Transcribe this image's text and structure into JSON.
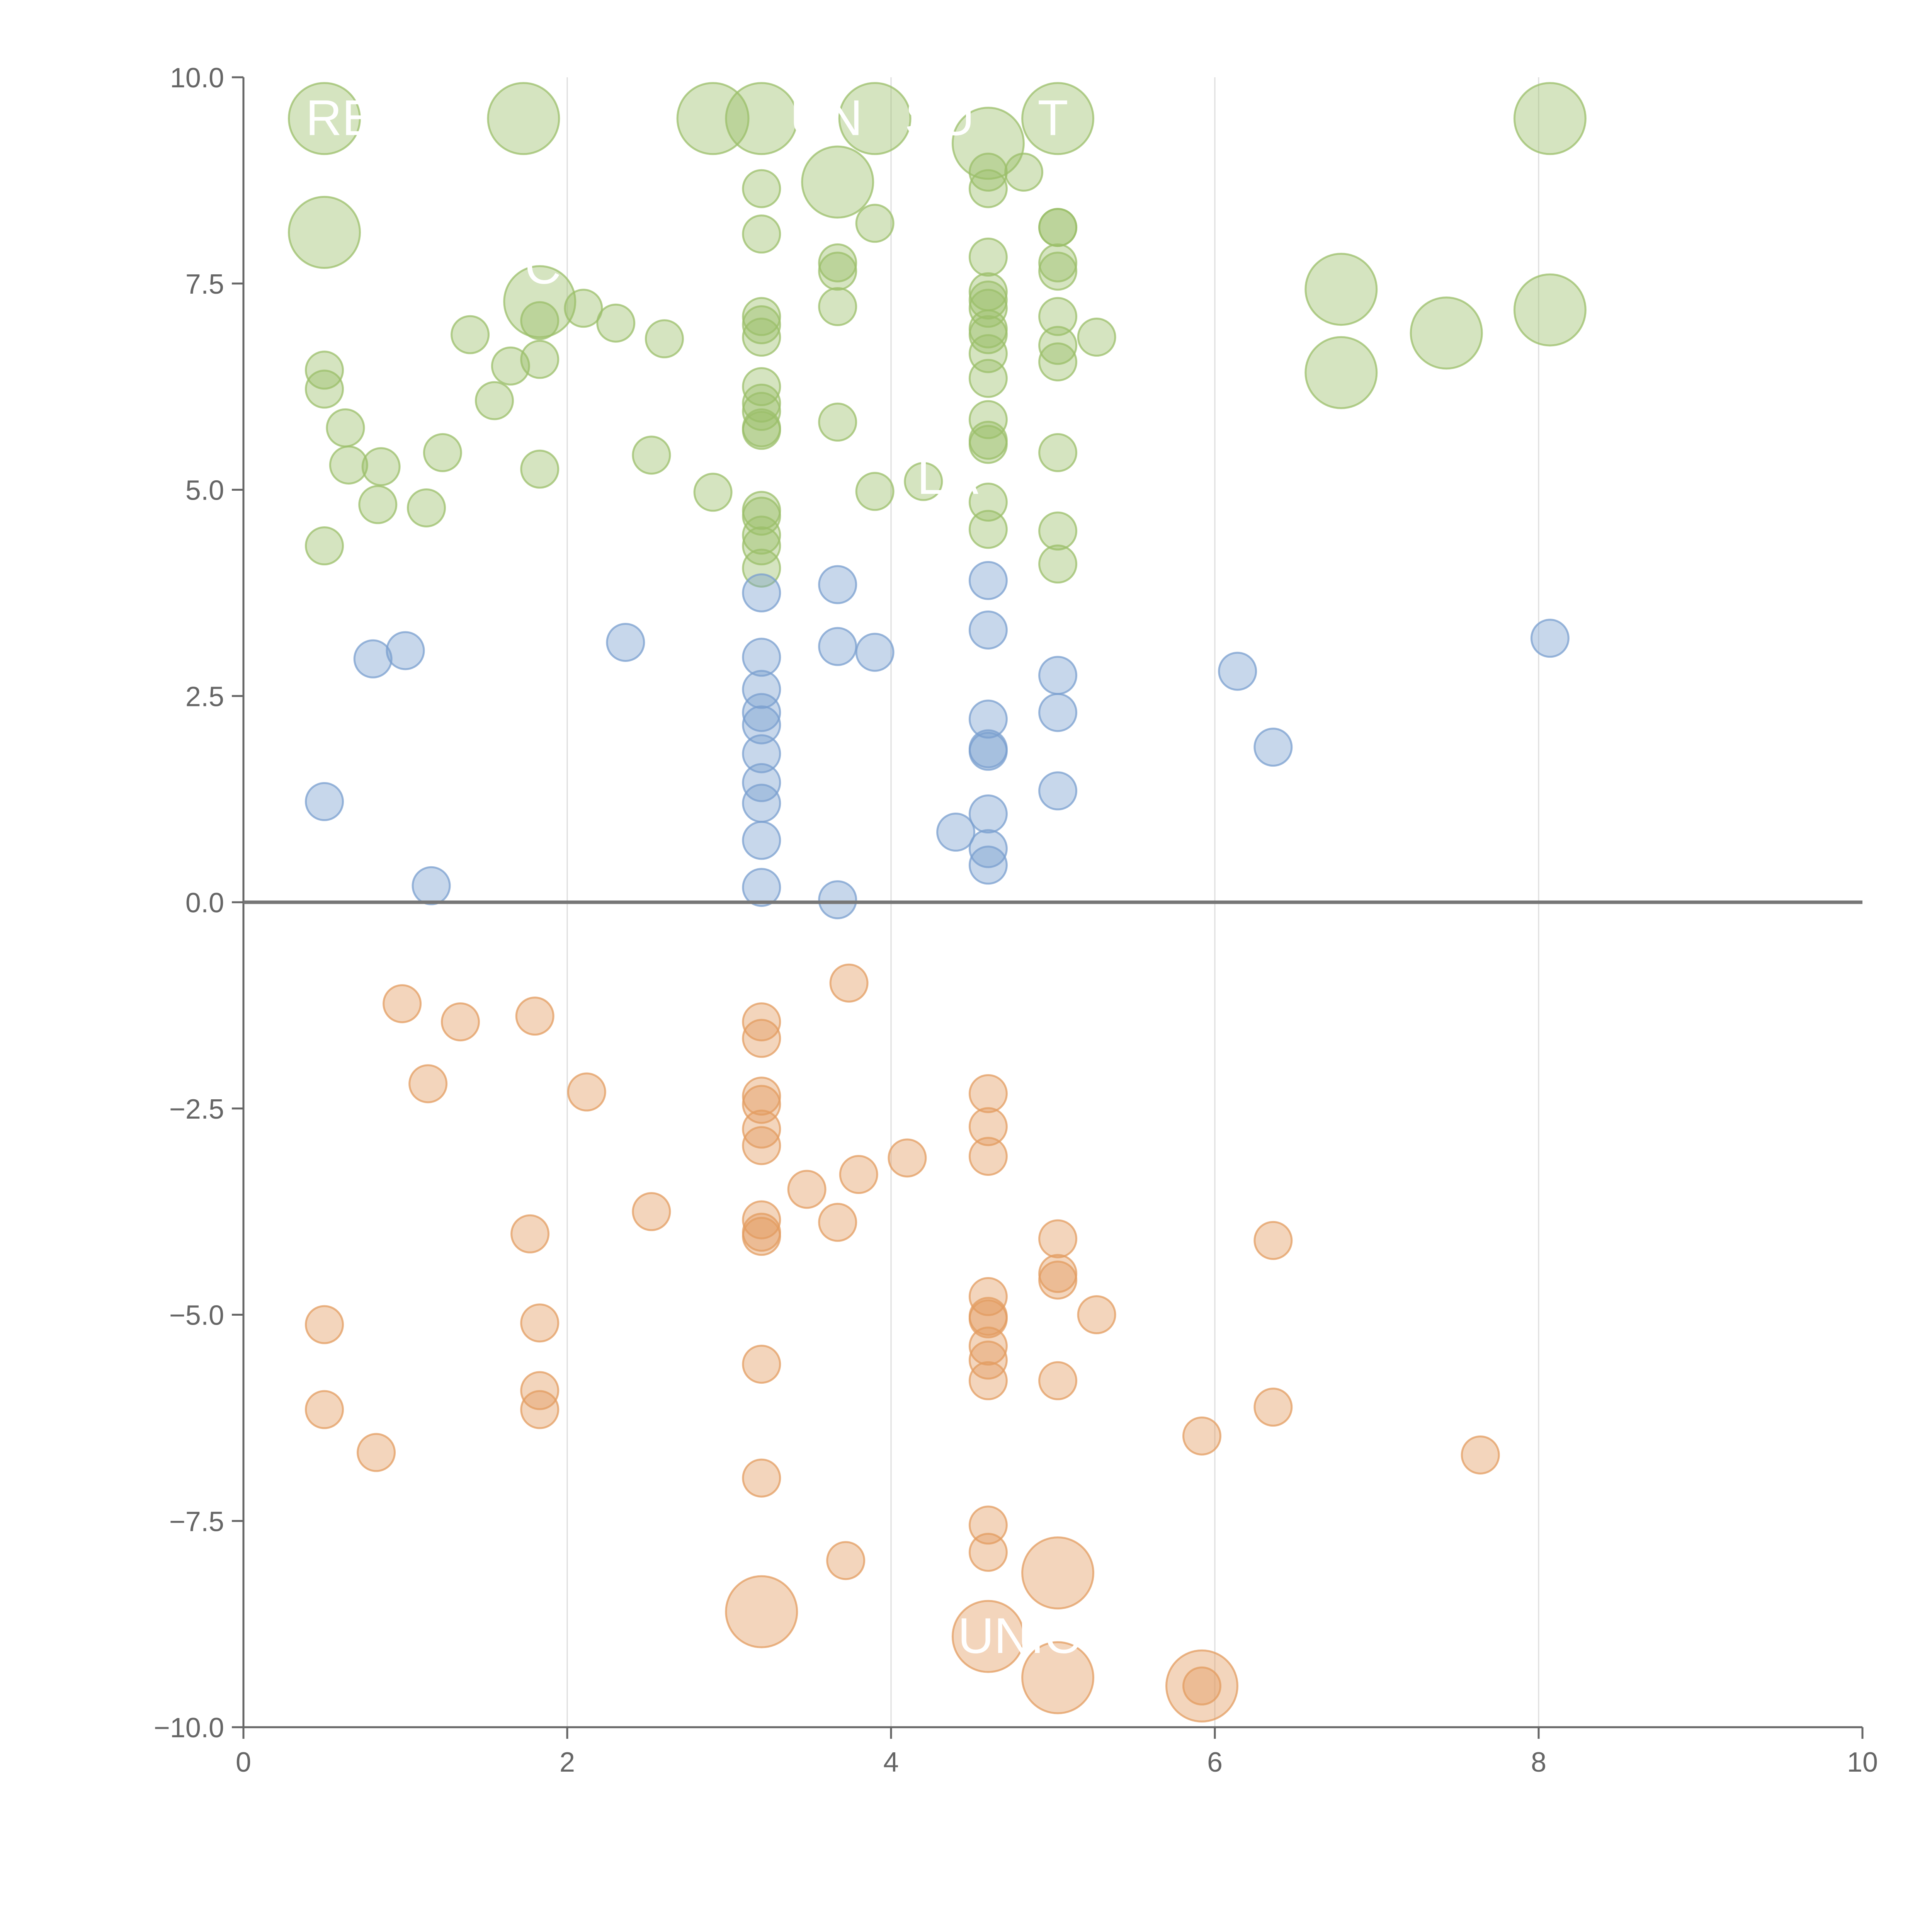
{
  "chart_data": {
    "type": "scatter",
    "title": "",
    "xlabel": "",
    "ylabel": "",
    "xlim": [
      0,
      10
    ],
    "ylim": [
      -10,
      10
    ],
    "x_ticks": [
      "0",
      "2",
      "4",
      "6",
      "8",
      "10"
    ],
    "y_ticks": [
      "10.0",
      "7.5",
      "5.0",
      "2.5",
      "0.0",
      "−2.5",
      "−5.0",
      "−7.5",
      "−10.0"
    ],
    "grid": "vertical",
    "zero_line": true,
    "colors": {
      "green": "#9bbf6a",
      "blue": "#7a9fcf",
      "orange": "#e39c60",
      "axis": "#666666",
      "zero": "#777777",
      "grid": "#dddddd"
    },
    "visible_labels": [
      "RE",
      "UN",
      "SU",
      "T",
      "C",
      "LA",
      "UNIO"
    ],
    "series": [
      {
        "color": "green",
        "points": [
          [
            0.5,
            9.5,
            2
          ],
          [
            1.73,
            9.5,
            2
          ],
          [
            2.9,
            9.5,
            2
          ],
          [
            3.2,
            9.5,
            2
          ],
          [
            3.9,
            9.5,
            2
          ],
          [
            5.03,
            9.5,
            2
          ],
          [
            8.07,
            9.5,
            2
          ],
          [
            0.5,
            8.12,
            2
          ],
          [
            3.67,
            8.73,
            2
          ],
          [
            4.6,
            9.2,
            2
          ],
          [
            1.83,
            7.28,
            2
          ],
          [
            6.78,
            7.43,
            2
          ],
          [
            7.43,
            6.9,
            2
          ],
          [
            8.07,
            7.18,
            2
          ],
          [
            6.78,
            6.42,
            2
          ],
          [
            4.6,
            8.85,
            1
          ],
          [
            4.6,
            8.65,
            1
          ],
          [
            4.82,
            8.85,
            1
          ],
          [
            3.2,
            8.65,
            1
          ],
          [
            3.2,
            8.1,
            1
          ],
          [
            3.9,
            8.23,
            1
          ],
          [
            5.03,
            8.18,
            1
          ],
          [
            5.03,
            8.18,
            1
          ],
          [
            5.03,
            7.75,
            1
          ],
          [
            5.03,
            7.65,
            1
          ],
          [
            5.03,
            7.1,
            1
          ],
          [
            5.03,
            6.75,
            1
          ],
          [
            5.03,
            6.55,
            1
          ],
          [
            5.27,
            6.85,
            1
          ],
          [
            4.6,
            7.82,
            1
          ],
          [
            4.6,
            7.4,
            1
          ],
          [
            4.6,
            7.3,
            1
          ],
          [
            4.6,
            7.2,
            1
          ],
          [
            4.6,
            6.95,
            1
          ],
          [
            4.6,
            6.88,
            1
          ],
          [
            4.6,
            6.65,
            1
          ],
          [
            4.6,
            6.35,
            1
          ],
          [
            4.6,
            5.85,
            1
          ],
          [
            4.6,
            5.6,
            1
          ],
          [
            4.6,
            5.55,
            1
          ],
          [
            4.6,
            4.85,
            1
          ],
          [
            4.6,
            4.52,
            1
          ],
          [
            3.67,
            7.75,
            1
          ],
          [
            3.67,
            7.65,
            1
          ],
          [
            3.67,
            7.22,
            1
          ],
          [
            3.67,
            5.82,
            1
          ],
          [
            3.2,
            7.1,
            1
          ],
          [
            3.2,
            7.0,
            1
          ],
          [
            3.2,
            6.85,
            1
          ],
          [
            3.2,
            6.25,
            1
          ],
          [
            3.2,
            6.05,
            1
          ],
          [
            3.2,
            5.95,
            1
          ],
          [
            3.2,
            5.75,
            1
          ],
          [
            3.2,
            5.72,
            1
          ],
          [
            3.2,
            4.75,
            1
          ],
          [
            3.2,
            4.68,
            1
          ],
          [
            3.2,
            4.45,
            1
          ],
          [
            3.2,
            4.32,
            1
          ],
          [
            3.2,
            4.05,
            1
          ],
          [
            2.1,
            7.2,
            1
          ],
          [
            2.3,
            7.02,
            1
          ],
          [
            2.6,
            6.83,
            1
          ],
          [
            1.4,
            6.88,
            1
          ],
          [
            1.65,
            6.5,
            1
          ],
          [
            1.83,
            7.05,
            1
          ],
          [
            1.83,
            6.58,
            1
          ],
          [
            1.55,
            6.08,
            1
          ],
          [
            0.5,
            6.45,
            1
          ],
          [
            0.5,
            6.22,
            1
          ],
          [
            0.63,
            5.75,
            1
          ],
          [
            0.65,
            5.3,
            1
          ],
          [
            0.85,
            5.28,
            1
          ],
          [
            0.83,
            4.82,
            1
          ],
          [
            1.13,
            4.78,
            1
          ],
          [
            1.23,
            5.45,
            1
          ],
          [
            1.83,
            5.25,
            1
          ],
          [
            0.5,
            4.32,
            1
          ],
          [
            2.52,
            5.42,
            1
          ],
          [
            2.9,
            4.97,
            1
          ],
          [
            3.9,
            4.98,
            1
          ],
          [
            4.2,
            5.1,
            1
          ],
          [
            5.03,
            5.45,
            1
          ],
          [
            5.03,
            4.5,
            1
          ],
          [
            5.03,
            4.1,
            1
          ]
        ]
      },
      {
        "color": "blue",
        "points": [
          [
            0.5,
            1.22,
            1
          ],
          [
            0.8,
            2.95,
            1
          ],
          [
            1.0,
            3.05,
            1
          ],
          [
            1.16,
            0.2,
            1
          ],
          [
            2.36,
            3.15,
            1
          ],
          [
            3.2,
            3.75,
            1
          ],
          [
            3.2,
            2.97,
            1
          ],
          [
            3.2,
            2.58,
            1
          ],
          [
            3.2,
            2.3,
            1
          ],
          [
            3.2,
            2.15,
            1
          ],
          [
            3.2,
            1.8,
            1
          ],
          [
            3.2,
            1.45,
            1
          ],
          [
            3.2,
            1.2,
            1
          ],
          [
            3.2,
            0.75,
            1
          ],
          [
            3.2,
            0.18,
            1
          ],
          [
            3.67,
            3.85,
            1
          ],
          [
            3.67,
            3.1,
            1
          ],
          [
            3.9,
            3.03,
            1
          ],
          [
            3.67,
            0.03,
            1
          ],
          [
            4.6,
            3.9,
            1
          ],
          [
            4.6,
            3.3,
            1
          ],
          [
            4.6,
            2.22,
            1
          ],
          [
            4.6,
            1.86,
            1
          ],
          [
            4.6,
            1.83,
            1
          ],
          [
            4.6,
            1.07,
            1
          ],
          [
            4.4,
            0.85,
            1
          ],
          [
            4.6,
            0.65,
            1
          ],
          [
            4.6,
            0.45,
            1
          ],
          [
            5.03,
            2.75,
            1
          ],
          [
            5.03,
            2.3,
            1
          ],
          [
            5.03,
            1.35,
            1
          ],
          [
            6.14,
            2.8,
            1
          ],
          [
            6.36,
            1.88,
            1
          ],
          [
            8.07,
            3.2,
            1
          ]
        ]
      },
      {
        "color": "orange",
        "points": [
          [
            0.98,
            -1.23,
            1
          ],
          [
            1.34,
            -1.45,
            1
          ],
          [
            1.8,
            -1.38,
            1
          ],
          [
            1.14,
            -2.2,
            1
          ],
          [
            2.12,
            -2.3,
            1
          ],
          [
            3.2,
            -1.45,
            1
          ],
          [
            3.2,
            -1.65,
            1
          ],
          [
            3.2,
            -2.35,
            1
          ],
          [
            3.2,
            -2.45,
            1
          ],
          [
            3.2,
            -2.75,
            1
          ],
          [
            3.2,
            -2.95,
            1
          ],
          [
            3.74,
            -0.98,
            1
          ],
          [
            3.8,
            -3.3,
            1
          ],
          [
            4.1,
            -3.1,
            1
          ],
          [
            3.48,
            -3.48,
            1
          ],
          [
            2.52,
            -3.75,
            1
          ],
          [
            1.77,
            -4.02,
            1
          ],
          [
            3.2,
            -3.85,
            1
          ],
          [
            3.2,
            -4.0,
            1
          ],
          [
            3.2,
            -4.05,
            1
          ],
          [
            3.67,
            -3.88,
            1
          ],
          [
            4.6,
            -2.32,
            1
          ],
          [
            4.6,
            -2.72,
            1
          ],
          [
            4.6,
            -3.08,
            1
          ],
          [
            5.03,
            -4.08,
            1
          ],
          [
            5.03,
            -4.5,
            1
          ],
          [
            5.03,
            -4.58,
            1
          ],
          [
            5.27,
            -5.0,
            1
          ],
          [
            6.36,
            -4.1,
            1
          ],
          [
            0.5,
            -5.12,
            1
          ],
          [
            0.5,
            -6.15,
            1
          ],
          [
            0.82,
            -6.67,
            1
          ],
          [
            1.83,
            -5.1,
            1
          ],
          [
            1.83,
            -5.92,
            1
          ],
          [
            1.83,
            -6.15,
            1
          ],
          [
            3.2,
            -5.6,
            1
          ],
          [
            3.2,
            -6.98,
            1
          ],
          [
            4.6,
            -4.78,
            1
          ],
          [
            4.6,
            -5.02,
            1
          ],
          [
            4.6,
            -5.05,
            1
          ],
          [
            4.6,
            -5.38,
            1
          ],
          [
            4.6,
            -5.55,
            1
          ],
          [
            4.6,
            -5.8,
            1
          ],
          [
            5.03,
            -5.8,
            1
          ],
          [
            5.92,
            -6.47,
            1
          ],
          [
            6.36,
            -6.12,
            1
          ],
          [
            7.64,
            -6.7,
            1
          ],
          [
            4.6,
            -7.55,
            1
          ],
          [
            4.6,
            -7.88,
            1
          ],
          [
            3.72,
            -7.98,
            1
          ],
          [
            3.2,
            -8.6,
            2
          ],
          [
            4.6,
            -8.9,
            2
          ],
          [
            5.03,
            -8.13,
            2
          ],
          [
            5.03,
            -9.4,
            2
          ],
          [
            5.92,
            -9.5,
            2
          ],
          [
            5.92,
            -9.5,
            1
          ]
        ]
      }
    ]
  }
}
